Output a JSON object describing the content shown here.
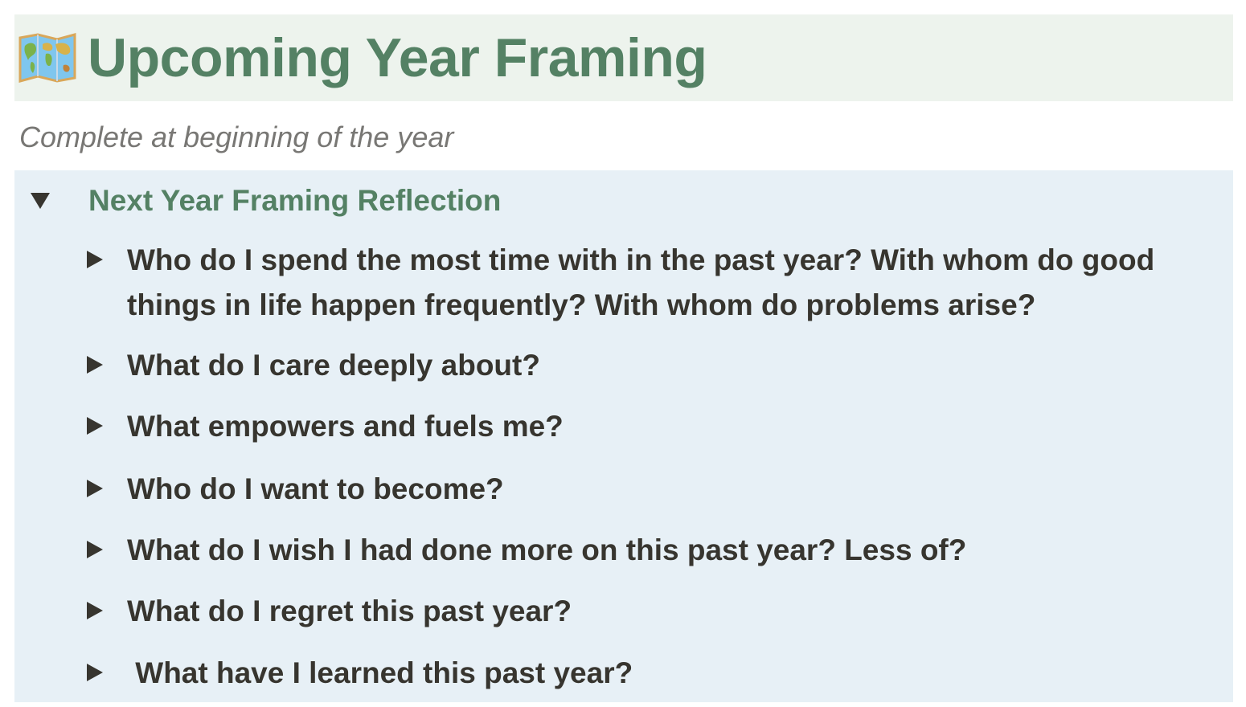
{
  "page": {
    "title": "Upcoming Year Framing",
    "title_icon": "world-map-icon",
    "subtitle": "Complete at beginning of the year"
  },
  "toggle": {
    "label": "Next Year Framing Reflection",
    "expanded": true,
    "items": [
      {
        "text": "Who do I spend the most time with in the past year? With whom do good things in life happen frequently? With whom do problems arise?"
      },
      {
        "text": "What do I care deeply about?"
      },
      {
        "text": "What empowers and fuels me?"
      },
      {
        "text": "Who do I want to become?"
      },
      {
        "text": "What do I wish I had done more on this past year? Less of?"
      },
      {
        "text": "What do I regret this past year?"
      },
      {
        "text": " What have I learned this past year?"
      }
    ]
  },
  "colors": {
    "title_bg": "#edf3ed",
    "title_text": "#548164",
    "callout_bg": "#e7f0f6",
    "body_text": "#37352f",
    "subtitle_text": "#787774"
  }
}
